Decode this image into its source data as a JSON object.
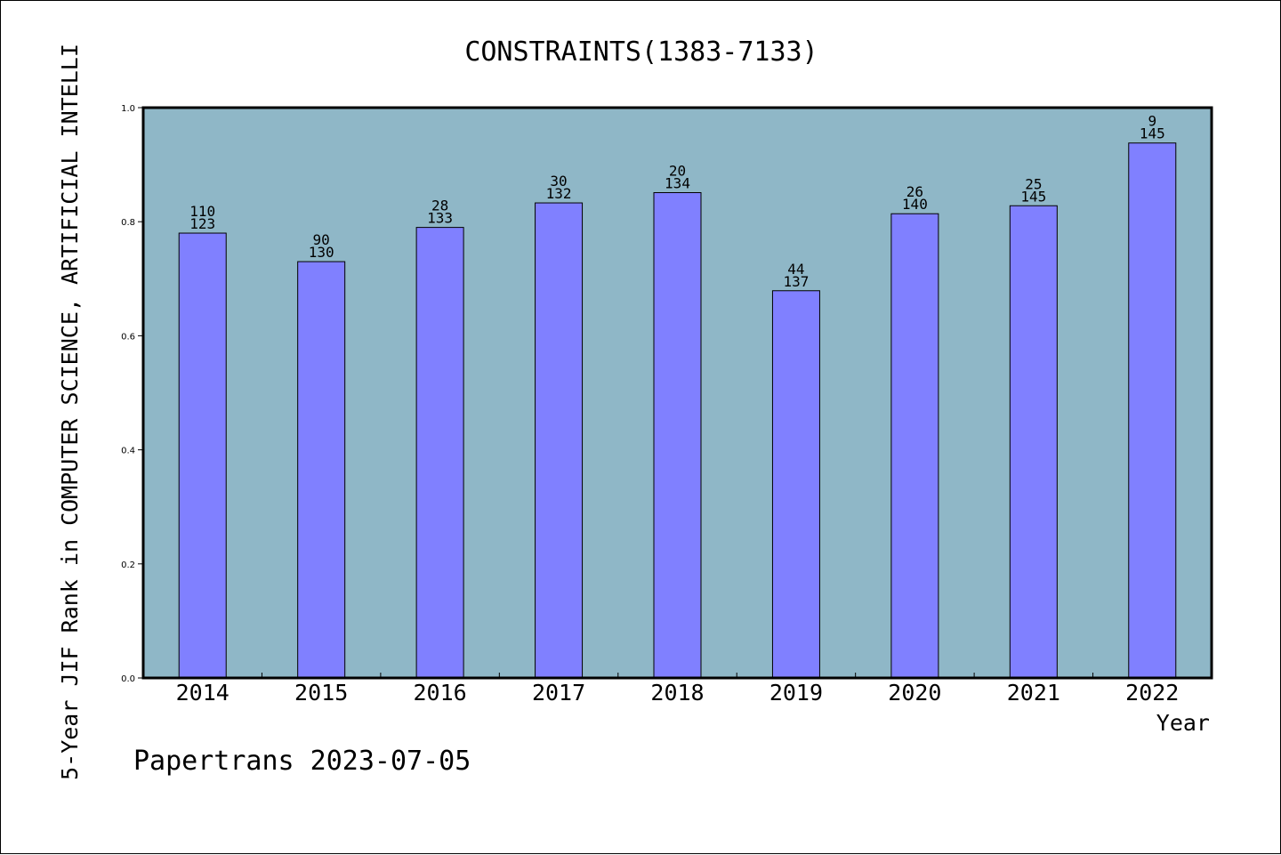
{
  "chart_data": {
    "type": "bar",
    "title": "CONSTRAINTS(1383-7133)",
    "xlabel": "Year",
    "ylabel": "5-Year JIF Rank in COMPUTER SCIENCE, ARTIFICIAL INTELLI",
    "categories": [
      "2014",
      "2015",
      "2016",
      "2017",
      "2018",
      "2019",
      "2020",
      "2021",
      "2022"
    ],
    "values": [
      0.78,
      0.73,
      0.79,
      0.833,
      0.851,
      0.679,
      0.814,
      0.828,
      0.938
    ],
    "ranks": [
      "110",
      "90",
      "28",
      "30",
      "20",
      "44",
      "26",
      "25",
      "9"
    ],
    "totals": [
      "123",
      "130",
      "133",
      "132",
      "134",
      "137",
      "140",
      "145",
      "145"
    ],
    "ylim": [
      0,
      1.0
    ],
    "yticks": [
      "0.0",
      "0.2",
      "0.4",
      "0.6",
      "0.8",
      "1.0"
    ],
    "grid": false,
    "colors": {
      "plot_background": "#8fb7c7",
      "bar_fill": "#8080ff",
      "bar_edge": "#000000"
    }
  },
  "footer": "Papertrans 2023-07-05"
}
